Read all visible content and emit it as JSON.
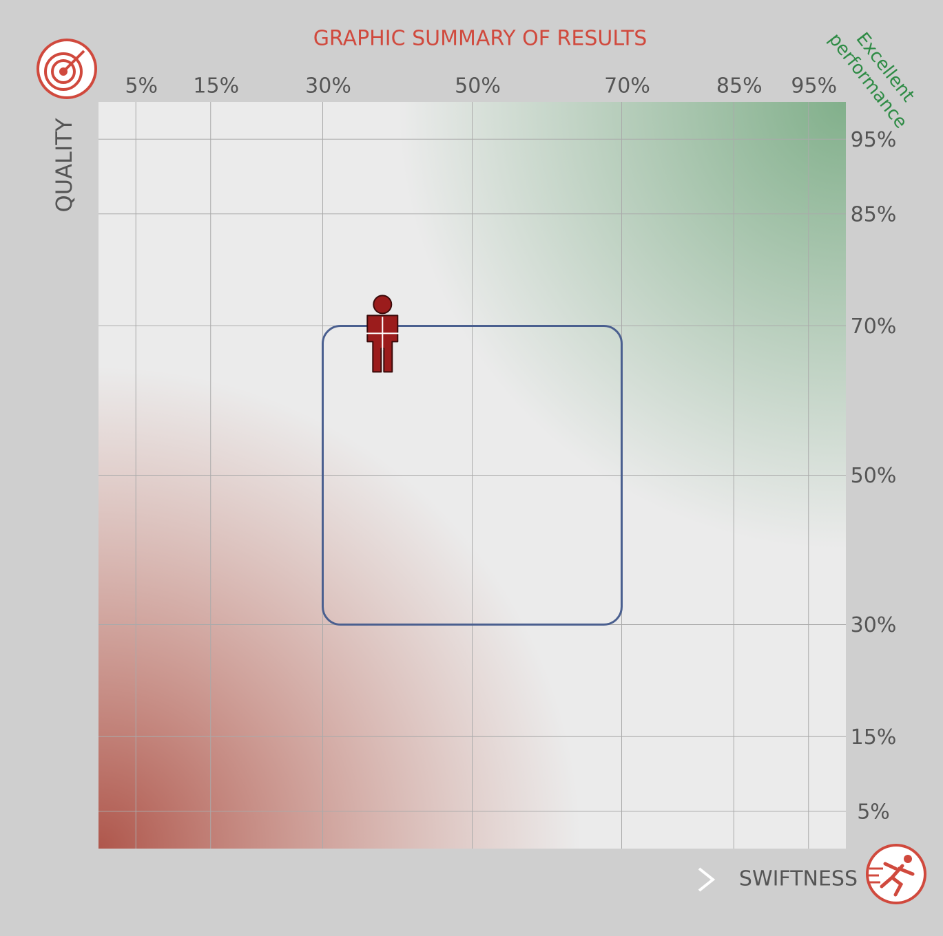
{
  "chart_data": {
    "type": "scatter",
    "title": "GRAPHIC SUMMARY OF RESULTS",
    "x_label": "SWIFTNESS",
    "y_label": "QUALITY",
    "annotation": [
      "Excellent",
      "performance"
    ],
    "x": [
      38
    ],
    "values": [
      69
    ],
    "color": "#9b1c1c",
    "target_region": {
      "x": [
        30,
        70
      ],
      "y": [
        30,
        70
      ],
      "color": "#4a5f8f"
    },
    "xlim": [
      0,
      100
    ],
    "ylim": [
      0,
      100
    ],
    "xticks": [
      {
        "value": 5,
        "label": "5%"
      },
      {
        "value": 15,
        "label": "15%"
      },
      {
        "value": 30,
        "label": "30%"
      },
      {
        "value": 50,
        "label": "50%"
      },
      {
        "value": 70,
        "label": "70%"
      },
      {
        "value": 85,
        "label": "85%"
      },
      {
        "value": 95,
        "label": "95%"
      }
    ],
    "yticks": [
      {
        "value": 5,
        "label": "5%"
      },
      {
        "value": 15,
        "label": "15%"
      },
      {
        "value": 30,
        "label": "30%"
      },
      {
        "value": 50,
        "label": "50%"
      },
      {
        "value": 70,
        "label": "70%"
      },
      {
        "value": 85,
        "label": "85%"
      },
      {
        "value": 95,
        "label": "95%"
      }
    ],
    "grid": true
  }
}
